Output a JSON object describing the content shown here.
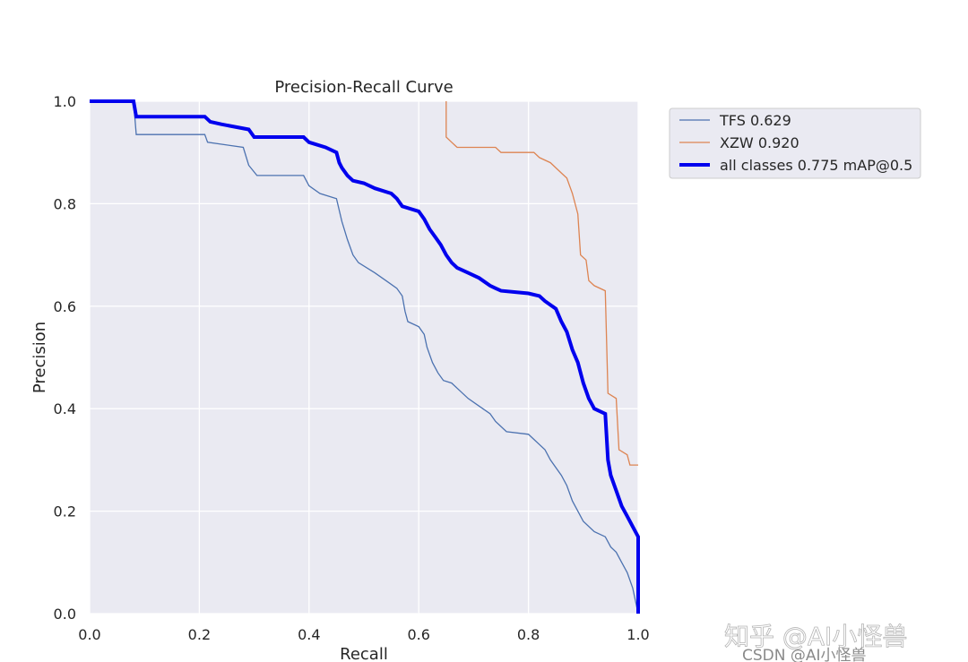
{
  "chart_data": {
    "type": "line",
    "title": "Precision-Recall Curve",
    "xlabel": "Recall",
    "ylabel": "Precision",
    "xlim": [
      0,
      1
    ],
    "ylim": [
      0,
      1
    ],
    "xticks": [
      "0.0",
      "0.2",
      "0.4",
      "0.6",
      "0.8",
      "1.0"
    ],
    "yticks": [
      "0.0",
      "0.2",
      "0.4",
      "0.6",
      "0.8",
      "1.0"
    ],
    "grid": true,
    "legend_position": "outside-top-right",
    "series": [
      {
        "name": "TFS 0.629",
        "color": "#4c72b0",
        "points": [
          [
            0,
            1
          ],
          [
            0.08,
            1
          ],
          [
            0.085,
            0.935
          ],
          [
            0.21,
            0.935
          ],
          [
            0.215,
            0.92
          ],
          [
            0.28,
            0.91
          ],
          [
            0.29,
            0.875
          ],
          [
            0.305,
            0.855
          ],
          [
            0.39,
            0.855
          ],
          [
            0.4,
            0.835
          ],
          [
            0.42,
            0.82
          ],
          [
            0.45,
            0.81
          ],
          [
            0.46,
            0.765
          ],
          [
            0.47,
            0.73
          ],
          [
            0.48,
            0.7
          ],
          [
            0.49,
            0.685
          ],
          [
            0.52,
            0.665
          ],
          [
            0.54,
            0.65
          ],
          [
            0.56,
            0.635
          ],
          [
            0.57,
            0.62
          ],
          [
            0.575,
            0.59
          ],
          [
            0.58,
            0.57
          ],
          [
            0.6,
            0.56
          ],
          [
            0.61,
            0.545
          ],
          [
            0.615,
            0.52
          ],
          [
            0.625,
            0.49
          ],
          [
            0.635,
            0.47
          ],
          [
            0.645,
            0.455
          ],
          [
            0.66,
            0.45
          ],
          [
            0.67,
            0.44
          ],
          [
            0.69,
            0.42
          ],
          [
            0.71,
            0.405
          ],
          [
            0.73,
            0.39
          ],
          [
            0.74,
            0.375
          ],
          [
            0.76,
            0.355
          ],
          [
            0.8,
            0.35
          ],
          [
            0.81,
            0.34
          ],
          [
            0.82,
            0.33
          ],
          [
            0.83,
            0.32
          ],
          [
            0.84,
            0.3
          ],
          [
            0.86,
            0.27
          ],
          [
            0.87,
            0.25
          ],
          [
            0.88,
            0.22
          ],
          [
            0.89,
            0.2
          ],
          [
            0.9,
            0.18
          ],
          [
            0.92,
            0.16
          ],
          [
            0.94,
            0.15
          ],
          [
            0.95,
            0.13
          ],
          [
            0.96,
            0.12
          ],
          [
            0.97,
            0.1
          ],
          [
            0.98,
            0.08
          ],
          [
            0.99,
            0.05
          ],
          [
            1,
            0
          ]
        ]
      },
      {
        "name": "XZW 0.920",
        "color": "#dd8452",
        "points": [
          [
            0.65,
            1
          ],
          [
            0.65,
            0.93
          ],
          [
            0.66,
            0.92
          ],
          [
            0.67,
            0.91
          ],
          [
            0.74,
            0.91
          ],
          [
            0.75,
            0.9
          ],
          [
            0.81,
            0.9
          ],
          [
            0.82,
            0.89
          ],
          [
            0.84,
            0.88
          ],
          [
            0.85,
            0.87
          ],
          [
            0.86,
            0.86
          ],
          [
            0.87,
            0.85
          ],
          [
            0.88,
            0.82
          ],
          [
            0.89,
            0.78
          ],
          [
            0.895,
            0.7
          ],
          [
            0.905,
            0.69
          ],
          [
            0.91,
            0.65
          ],
          [
            0.92,
            0.64
          ],
          [
            0.94,
            0.63
          ],
          [
            0.945,
            0.43
          ],
          [
            0.96,
            0.42
          ],
          [
            0.965,
            0.32
          ],
          [
            0.98,
            0.31
          ],
          [
            0.985,
            0.29
          ],
          [
            1,
            0.29
          ]
        ]
      },
      {
        "name": "all classes 0.775 mAP@0.5",
        "color": "#0000ee",
        "points": [
          [
            0,
            1
          ],
          [
            0.08,
            1
          ],
          [
            0.085,
            0.97
          ],
          [
            0.21,
            0.97
          ],
          [
            0.22,
            0.96
          ],
          [
            0.24,
            0.955
          ],
          [
            0.29,
            0.945
          ],
          [
            0.3,
            0.93
          ],
          [
            0.39,
            0.93
          ],
          [
            0.4,
            0.92
          ],
          [
            0.43,
            0.91
          ],
          [
            0.45,
            0.9
          ],
          [
            0.455,
            0.88
          ],
          [
            0.46,
            0.87
          ],
          [
            0.47,
            0.855
          ],
          [
            0.48,
            0.845
          ],
          [
            0.5,
            0.84
          ],
          [
            0.52,
            0.83
          ],
          [
            0.55,
            0.82
          ],
          [
            0.56,
            0.81
          ],
          [
            0.57,
            0.795
          ],
          [
            0.6,
            0.785
          ],
          [
            0.61,
            0.77
          ],
          [
            0.62,
            0.75
          ],
          [
            0.63,
            0.735
          ],
          [
            0.64,
            0.72
          ],
          [
            0.65,
            0.7
          ],
          [
            0.66,
            0.685
          ],
          [
            0.67,
            0.675
          ],
          [
            0.69,
            0.665
          ],
          [
            0.71,
            0.655
          ],
          [
            0.73,
            0.64
          ],
          [
            0.74,
            0.635
          ],
          [
            0.75,
            0.63
          ],
          [
            0.8,
            0.625
          ],
          [
            0.82,
            0.62
          ],
          [
            0.83,
            0.61
          ],
          [
            0.85,
            0.595
          ],
          [
            0.86,
            0.57
          ],
          [
            0.87,
            0.55
          ],
          [
            0.88,
            0.515
          ],
          [
            0.89,
            0.49
          ],
          [
            0.9,
            0.45
          ],
          [
            0.91,
            0.42
          ],
          [
            0.92,
            0.4
          ],
          [
            0.94,
            0.39
          ],
          [
            0.945,
            0.3
          ],
          [
            0.95,
            0.27
          ],
          [
            0.96,
            0.24
          ],
          [
            0.97,
            0.21
          ],
          [
            0.98,
            0.19
          ],
          [
            0.99,
            0.17
          ],
          [
            1,
            0.15
          ],
          [
            1,
            0
          ]
        ]
      }
    ]
  },
  "watermark": {
    "zhihu": "知乎 @AI小怪兽",
    "csdn": "CSDN @AI小怪兽"
  },
  "colors": {
    "plot_bg": "#eaeaf2",
    "grid": "#ffffff",
    "legend_bg": "#eaeaf2",
    "legend_border": "#cccccc"
  }
}
